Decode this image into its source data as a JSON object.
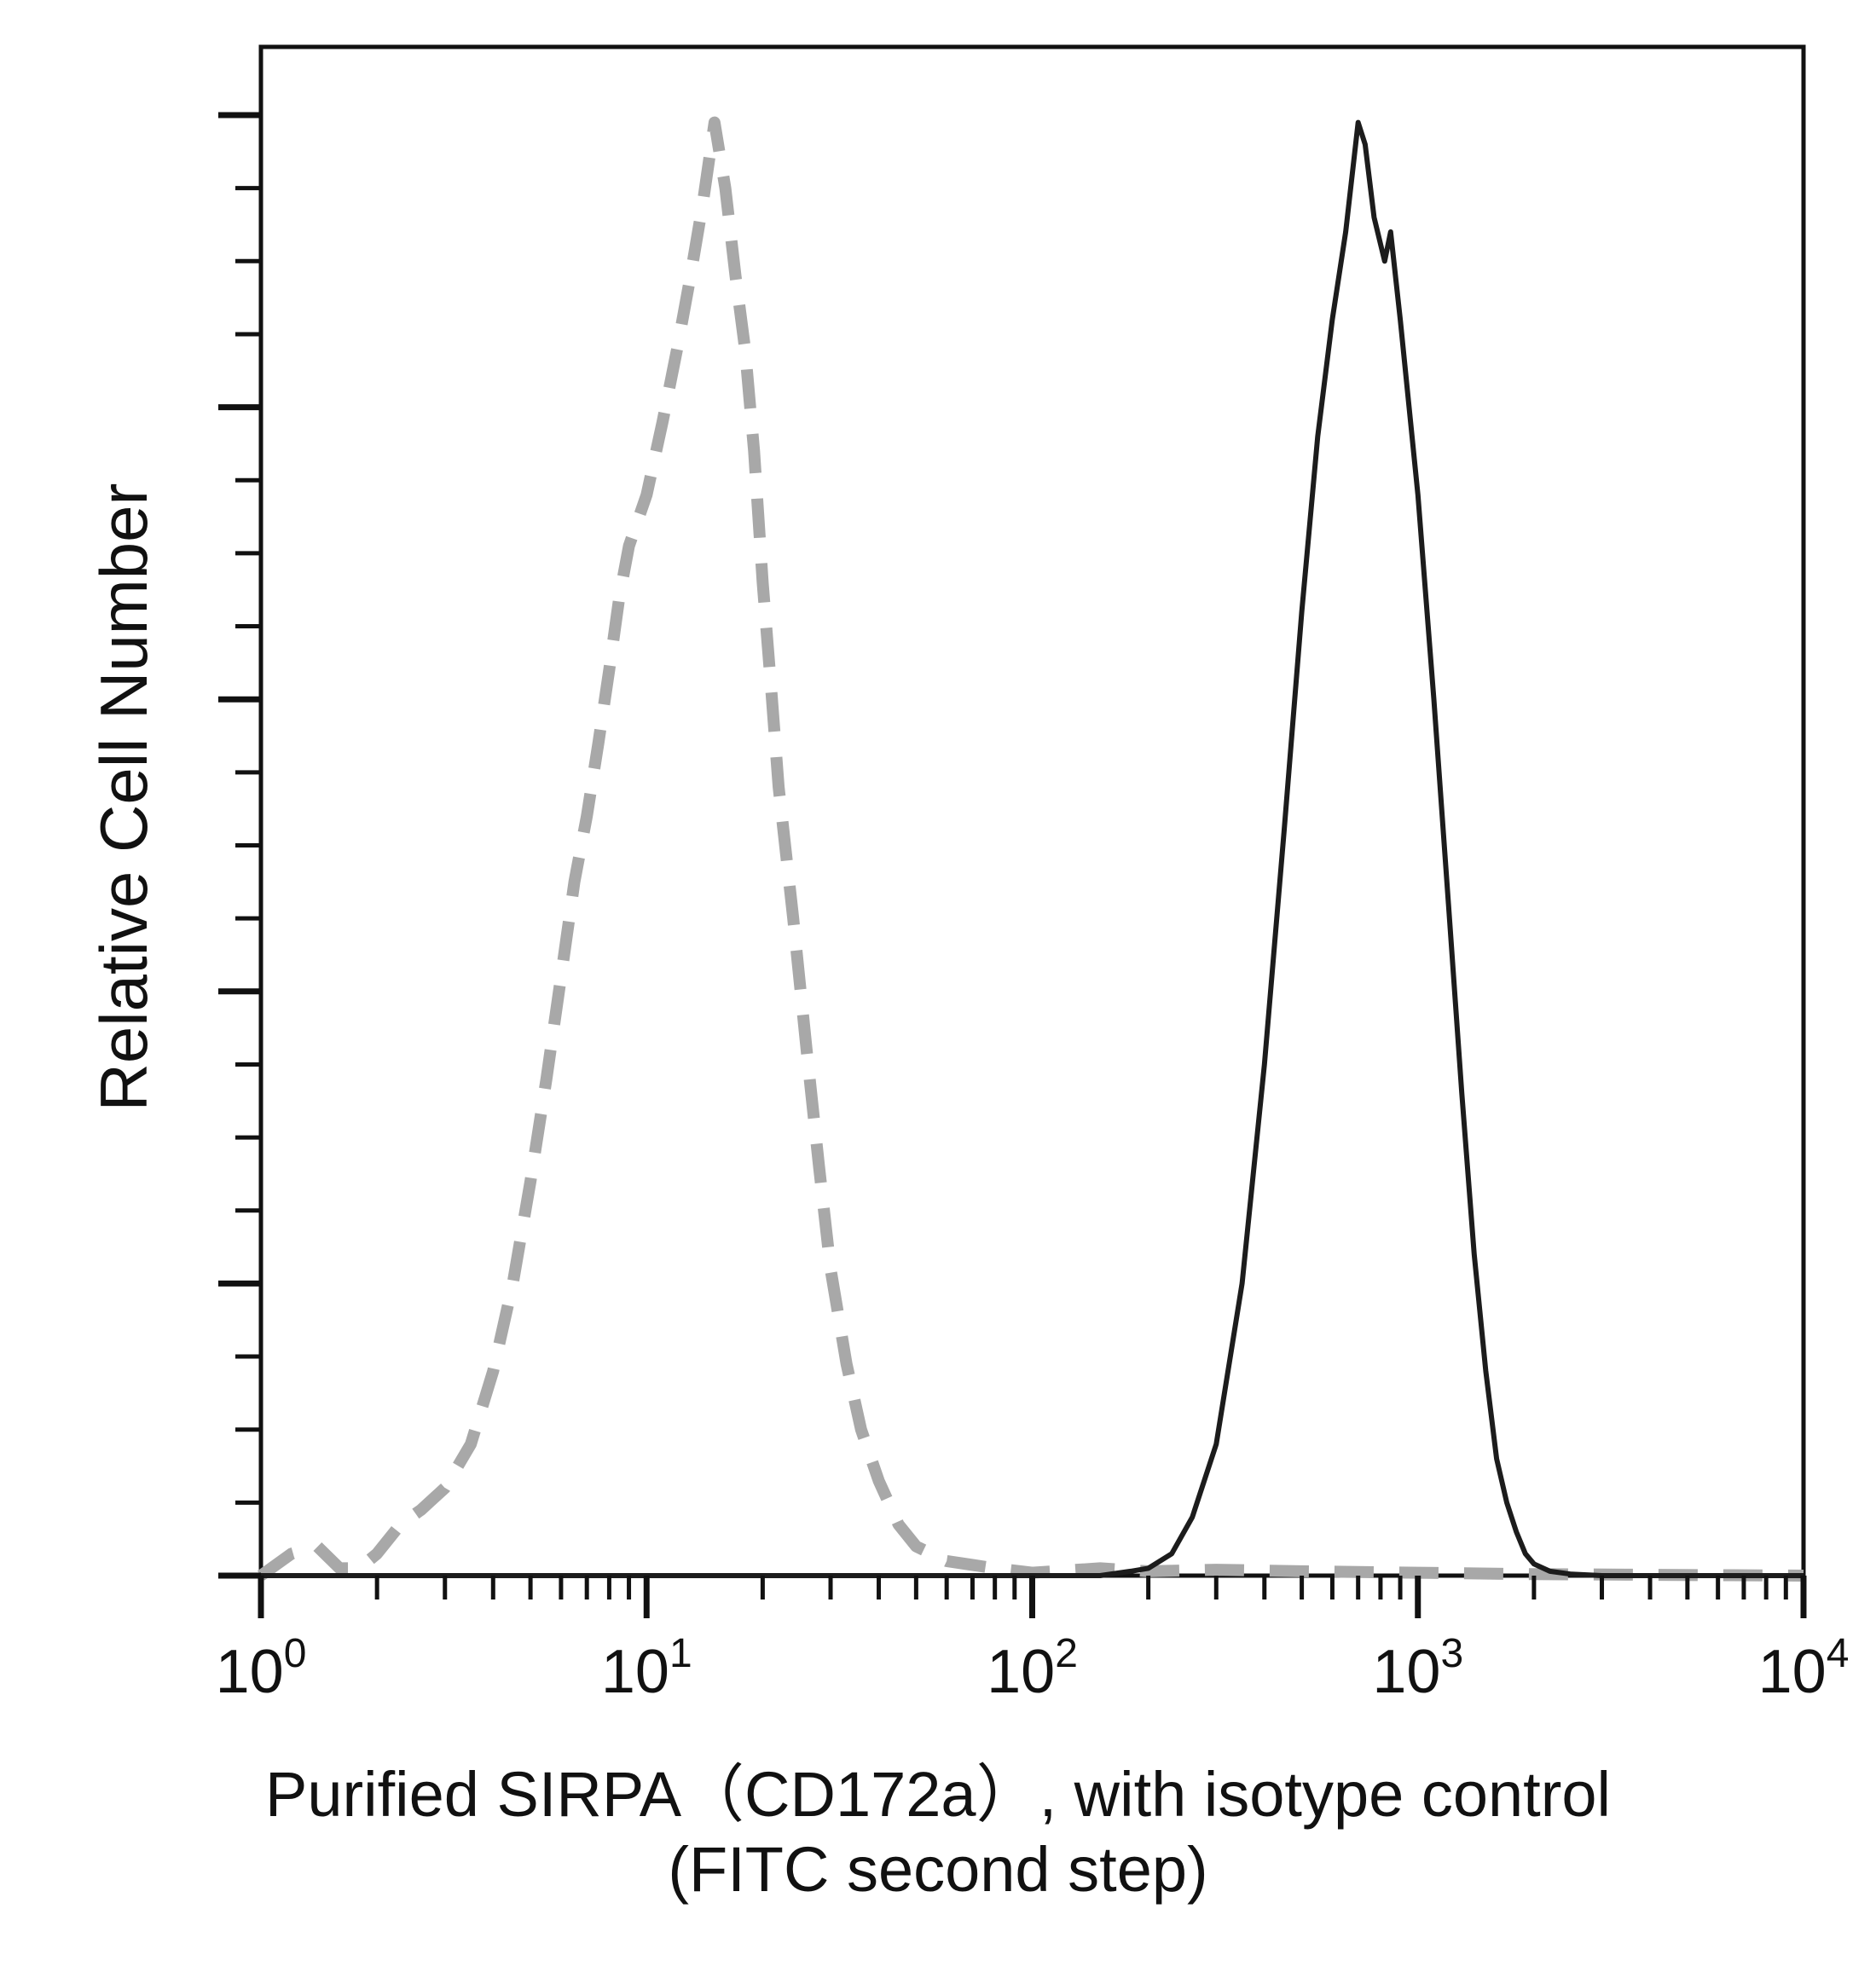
{
  "chart_data": {
    "type": "line",
    "title": "",
    "xlabel_line1": "Purified SIRPA（CD172a）, with isotype control",
    "xlabel_line2": "(FITC second step)",
    "ylabel": "Relative Cell Number",
    "x_scale": "log",
    "xlim": [
      1,
      10000
    ],
    "ylim": [
      0,
      100
    ],
    "x_ticks": [
      {
        "value": 1,
        "base": "10",
        "exp": "0"
      },
      {
        "value": 10,
        "base": "10",
        "exp": "1"
      },
      {
        "value": 100,
        "base": "10",
        "exp": "2"
      },
      {
        "value": 1000,
        "base": "10",
        "exp": "3"
      },
      {
        "value": 10000,
        "base": "10",
        "exp": "4"
      }
    ],
    "y_major_ticks": [
      0,
      20,
      40,
      60,
      80,
      100
    ],
    "y_minor_step": 5,
    "grid": false,
    "legend": "none",
    "series": [
      {
        "style": "dashed",
        "color": "#a8a8a8",
        "x": [
          1,
          1.2,
          1.4,
          1.6,
          1.8,
          2.0,
          2.3,
          2.6,
          3.0,
          3.5,
          4.0,
          4.5,
          5.0,
          5.5,
          6.0,
          6.5,
          7.0,
          7.5,
          8.0,
          8.5,
          9.0,
          10,
          11,
          12,
          13,
          14,
          15,
          16,
          17,
          18,
          19,
          20,
          21,
          22,
          24,
          26,
          28,
          30,
          33,
          36,
          40,
          45,
          50,
          60,
          80,
          100,
          150,
          200,
          300,
          500,
          1000,
          2000,
          10000
        ],
        "y": [
          0,
          1.5,
          2.0,
          0.5,
          0.5,
          1.5,
          3.5,
          4.5,
          6.0,
          9.0,
          14.0,
          20.0,
          27.0,
          34.0,
          41.0,
          47.5,
          52.0,
          57.0,
          62.0,
          67.0,
          70.5,
          74.0,
          79.0,
          84.0,
          89.0,
          94.0,
          99.5,
          95.0,
          89.0,
          84.0,
          77.0,
          68.0,
          61.0,
          54.0,
          45.0,
          36.0,
          28.0,
          21.0,
          14.5,
          10.0,
          6.5,
          3.5,
          2.0,
          1.0,
          0.5,
          0.2,
          0.5,
          0.3,
          0.4,
          0.3,
          0.2,
          0.1,
          0
        ]
      },
      {
        "style": "solid",
        "color": "#1c1c1c",
        "x": [
          1,
          50,
          100,
          150,
          180,
          200,
          230,
          260,
          300,
          350,
          400,
          450,
          500,
          550,
          600,
          650,
          700,
          730,
          770,
          820,
          850,
          900,
          1000,
          1100,
          1200,
          1300,
          1400,
          1500,
          1600,
          1700,
          1800,
          1900,
          2000,
          2200,
          2500,
          3000,
          10000
        ],
        "y": [
          0,
          0,
          0,
          0,
          0.3,
          0.5,
          1.5,
          4.0,
          9.0,
          20.0,
          35.0,
          51.0,
          66.0,
          78.0,
          86.0,
          92.0,
          99.5,
          98.0,
          93.0,
          90.0,
          92.0,
          86.0,
          74.0,
          60.0,
          46.0,
          33.0,
          22.0,
          14.0,
          8.0,
          5.0,
          3.0,
          1.5,
          0.8,
          0.3,
          0.1,
          0,
          0
        ]
      }
    ]
  }
}
